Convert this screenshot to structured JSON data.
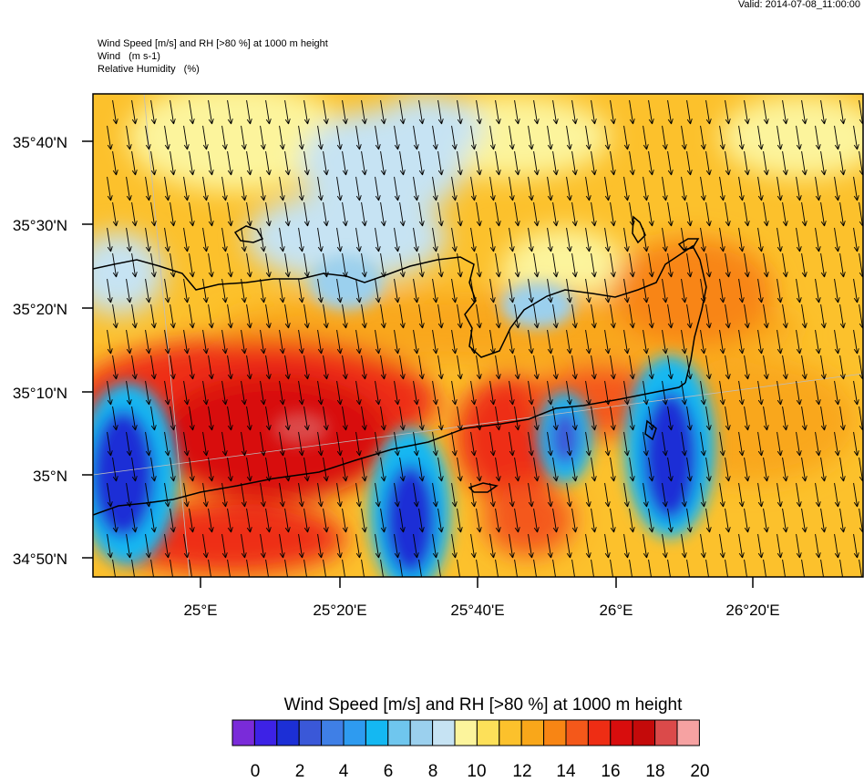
{
  "valid": "Valid: 2014-07-08_11:00:00",
  "header": {
    "line1": "Wind Speed [m/s] and RH [>80 %] at 1000 m height",
    "line2_name": "Wind",
    "line2_unit": "(m s-1)",
    "line3_name": "Relative Humidity",
    "line3_unit": "(%)"
  },
  "map": {
    "lat_labels": [
      "35°40'N",
      "35°30'N",
      "35°20'N",
      "35°10'N",
      "35°N",
      "34°50'N"
    ],
    "lon_labels": [
      "25°E",
      "25°20'E",
      "25°40'E",
      "26°E",
      "26°20'E"
    ],
    "wind_direction": "from north-northwest"
  },
  "colorbar": {
    "title": "Wind Speed [m/s] and RH [>80 %] at 1000 m height",
    "labels": [
      "0",
      "2",
      "4",
      "6",
      "8",
      "10",
      "12",
      "14",
      "16",
      "18",
      "20"
    ],
    "colors": [
      "#7a2bd9",
      "#3d22e6",
      "#1c2fd6",
      "#3a58d8",
      "#3f7fe6",
      "#2e9bf0",
      "#14b8f2",
      "#6fc6ee",
      "#9bd0ee",
      "#c6e3f3",
      "#fcf49c",
      "#fde059",
      "#fcc12c",
      "#f9a71a",
      "#f88514",
      "#f4581a",
      "#ee2d14",
      "#d80d0d",
      "#c40a0a",
      "#db4a4a",
      "#f6a2a2"
    ]
  }
}
